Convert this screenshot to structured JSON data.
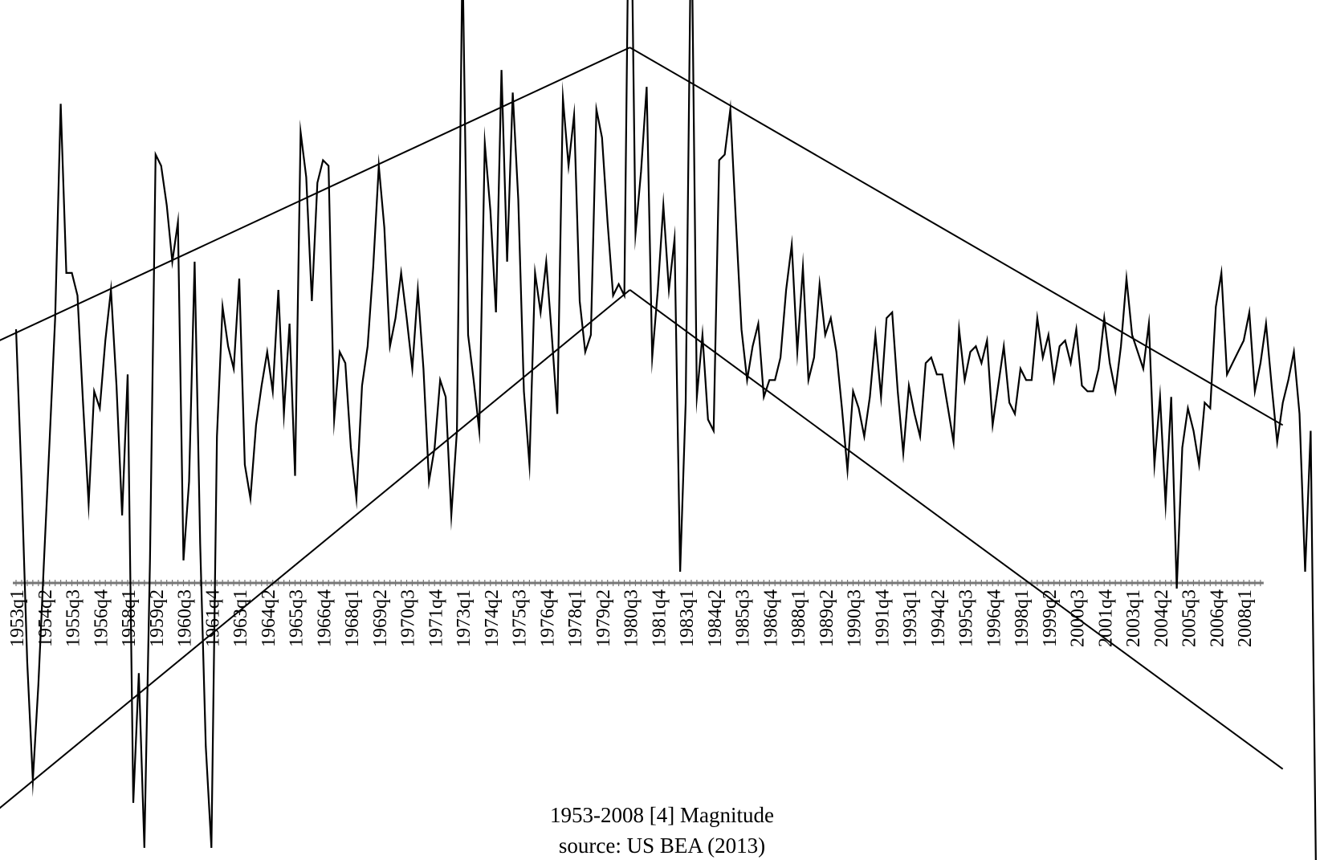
{
  "chart_data": {
    "type": "line",
    "title": "1953-2008 [4] Magnitude",
    "subtitle": "source: US BEA (2013)",
    "xlabel": "",
    "ylabel": "",
    "x_start": "1953q1",
    "n_quarters": 224,
    "tick_labels": [
      "1953q1",
      "1954q2",
      "1955q3",
      "1956q4",
      "1958q1",
      "1959q2",
      "1960q3",
      "1961q4",
      "1963q1",
      "1964q2",
      "1965q3",
      "1966q4",
      "1968q1",
      "1969q2",
      "1970q3",
      "1971q4",
      "1973q1",
      "1974q2",
      "1975q3",
      "1976q4",
      "1978q1",
      "1979q2",
      "1980q3",
      "1981q4",
      "1983q1",
      "1984q2",
      "1985q3",
      "1986q4",
      "1988q1",
      "1989q2",
      "1990q3",
      "1991q4",
      "1993q1",
      "1994q2",
      "1995q3",
      "1996q4",
      "1998q1",
      "1999q2",
      "2000q3",
      "2001q4",
      "2003q1",
      "2004q2",
      "2005q3",
      "2006q4",
      "2008q1"
    ],
    "ylim": [
      -5.6,
      13.9
    ],
    "grid": false,
    "legend": "none",
    "series": [
      {
        "values": [
          4.5,
          1.8,
          -1.4,
          -3.5,
          -1.8,
          0.4,
          2.5,
          4.7,
          8.5,
          5.5,
          5.5,
          5.1,
          3.2,
          1.4,
          3.4,
          3.1,
          4.3,
          5.2,
          3.5,
          1.2,
          3.7,
          -3.9,
          -1.6,
          -4.7,
          0.4,
          7.6,
          7.4,
          6.7,
          5.7,
          6.4,
          0.4,
          1.8,
          5.7,
          0.7,
          -2.9,
          -4.7,
          2.6,
          4.9,
          4.2,
          3.8,
          5.4,
          2.1,
          1.5,
          2.8,
          3.5,
          4.1,
          3.4,
          5.2,
          3.0,
          4.6,
          1.9,
          8.0,
          7.2,
          5.0,
          7.1,
          7.5,
          7.4,
          2.9,
          4.1,
          3.9,
          2.4,
          1.5,
          3.5,
          4.2,
          5.6,
          7.4,
          6.3,
          4.2,
          4.7,
          5.5,
          4.7,
          3.8,
          5.2,
          3.8,
          1.8,
          2.4,
          3.6,
          3.3,
          1.2,
          2.7,
          11.2,
          4.4,
          3.6,
          2.7,
          7.8,
          6.6,
          4.8,
          9.1,
          5.7,
          8.7,
          6.8,
          3.4,
          2.1,
          5.5,
          4.8,
          5.7,
          4.4,
          3.0,
          8.6,
          7.4,
          8.3,
          5.0,
          4.1,
          4.4,
          8.4,
          7.9,
          6.4,
          5.1,
          5.3,
          5.1,
          14.0,
          6.2,
          7.3,
          8.8,
          4.0,
          5.2,
          6.7,
          5.2,
          6.1,
          0.2,
          3.2,
          12.2,
          3.3,
          4.4,
          2.9,
          2.7,
          7.5,
          7.6,
          8.4,
          6.4,
          4.5,
          3.6,
          4.2,
          4.6,
          3.3,
          3.6,
          3.6,
          4.0,
          5.2,
          6.0,
          4.1,
          5.6,
          3.6,
          4.0,
          5.3,
          4.4,
          4.7,
          4.1,
          3.1,
          2.0,
          3.4,
          3.1,
          2.6,
          3.3,
          4.4,
          3.3,
          4.7,
          4.8,
          3.4,
          2.3,
          3.5,
          3.0,
          2.6,
          3.9,
          4.0,
          3.7,
          3.7,
          3.1,
          2.5,
          4.5,
          3.6,
          4.1,
          4.2,
          3.9,
          4.3,
          2.8,
          3.5,
          4.2,
          3.2,
          3.0,
          3.8,
          3.6,
          3.6,
          4.7,
          4.0,
          4.4,
          3.6,
          4.2,
          4.3,
          3.9,
          4.5,
          3.5,
          3.4,
          3.4,
          3.8,
          4.7,
          3.9,
          3.4,
          4.2,
          5.4,
          4.4,
          4.1,
          3.8,
          4.6,
          2.1,
          3.3,
          1.4,
          3.3,
          -0.1,
          2.4,
          3.1,
          2.7,
          2.1,
          3.2,
          3.1,
          4.9,
          5.5,
          3.7,
          3.9,
          4.1,
          4.3,
          4.8,
          3.4,
          3.9,
          4.6,
          3.5,
          2.5,
          3.2,
          3.6,
          4.1,
          3.0,
          0.2,
          2.7,
          -5.6
        ]
      },
      {
        "values": [
          4.3,
          9.5
        ]
      },
      {
        "values": [
          -4.0,
          5.2
        ]
      },
      {
        "values": [
          9.5,
          2.8
        ]
      },
      {
        "values": [
          5.2,
          -3.3
        ]
      }
    ]
  }
}
